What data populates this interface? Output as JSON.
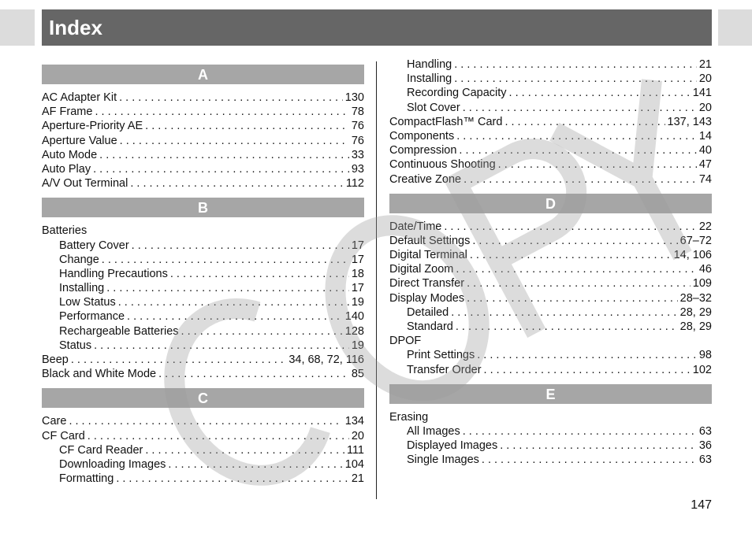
{
  "title": "Index",
  "page_number": "147",
  "watermark": "COPY",
  "columns": {
    "left": [
      {
        "header": "A"
      },
      {
        "label": "AC Adapter Kit",
        "page": "130"
      },
      {
        "label": "AF Frame",
        "page": "78"
      },
      {
        "label": "Aperture-Priority AE",
        "page": "76"
      },
      {
        "label": "Aperture Value",
        "page": "76"
      },
      {
        "label": "Auto Mode",
        "page": "33"
      },
      {
        "label": "Auto Play",
        "page": "93"
      },
      {
        "label": "A/V Out Terminal",
        "page": "112"
      },
      {
        "header": "B"
      },
      {
        "label": "Batteries",
        "page": ""
      },
      {
        "label": "Battery Cover",
        "page": "17",
        "indent": true
      },
      {
        "label": "Change",
        "page": "17",
        "indent": true
      },
      {
        "label": "Handling Precautions",
        "page": "18",
        "indent": true
      },
      {
        "label": "Installing",
        "page": "17",
        "indent": true
      },
      {
        "label": "Low Status",
        "page": "19",
        "indent": true
      },
      {
        "label": "Performance",
        "page": "140",
        "indent": true
      },
      {
        "label": "Rechargeable Batteries",
        "page": "128",
        "indent": true
      },
      {
        "label": "Status",
        "page": "19",
        "indent": true
      },
      {
        "label": "Beep",
        "page": "34, 68, 72, 116"
      },
      {
        "label": "Black and White Mode",
        "page": "85"
      },
      {
        "header": "C"
      },
      {
        "label": "Care",
        "page": "134"
      },
      {
        "label": "CF Card",
        "page": "20"
      },
      {
        "label": "CF Card Reader",
        "page": "111",
        "indent": true
      },
      {
        "label": "Downloading Images",
        "page": "104",
        "indent": true
      },
      {
        "label": "Formatting",
        "page": "21",
        "indent": true
      }
    ],
    "right": [
      {
        "label": "Handling",
        "page": "21",
        "indent": true
      },
      {
        "label": "Installing",
        "page": "20",
        "indent": true
      },
      {
        "label": "Recording Capacity",
        "page": "141",
        "indent": true
      },
      {
        "label": "Slot Cover",
        "page": "20",
        "indent": true
      },
      {
        "label": "CompactFlash™ Card",
        "page": "137, 143"
      },
      {
        "label": "Components",
        "page": "14"
      },
      {
        "label": "Compression",
        "page": "40"
      },
      {
        "label": "Continuous Shooting",
        "page": "47"
      },
      {
        "label": "Creative Zone",
        "page": "74"
      },
      {
        "header": "D"
      },
      {
        "label": "Date/Time",
        "page": "22"
      },
      {
        "label": "Default Settings",
        "page": "67–72"
      },
      {
        "label": "Digital Terminal",
        "page": "14, 106"
      },
      {
        "label": "Digital Zoom",
        "page": "46"
      },
      {
        "label": "Direct Transfer",
        "page": "109"
      },
      {
        "label": "Display Modes",
        "page": "28–32"
      },
      {
        "label": "Detailed",
        "page": "28, 29",
        "indent": true
      },
      {
        "label": "Standard",
        "page": "28, 29",
        "indent": true
      },
      {
        "label": "DPOF",
        "page": ""
      },
      {
        "label": "Print Settings",
        "page": "98",
        "indent": true
      },
      {
        "label": "Transfer Order",
        "page": "102",
        "indent": true
      },
      {
        "header": "E"
      },
      {
        "label": "Erasing",
        "page": ""
      },
      {
        "label": "All Images",
        "page": "63",
        "indent": true
      },
      {
        "label": "Displayed Images",
        "page": "36",
        "indent": true
      },
      {
        "label": "Single Images",
        "page": "63",
        "indent": true
      }
    ]
  }
}
